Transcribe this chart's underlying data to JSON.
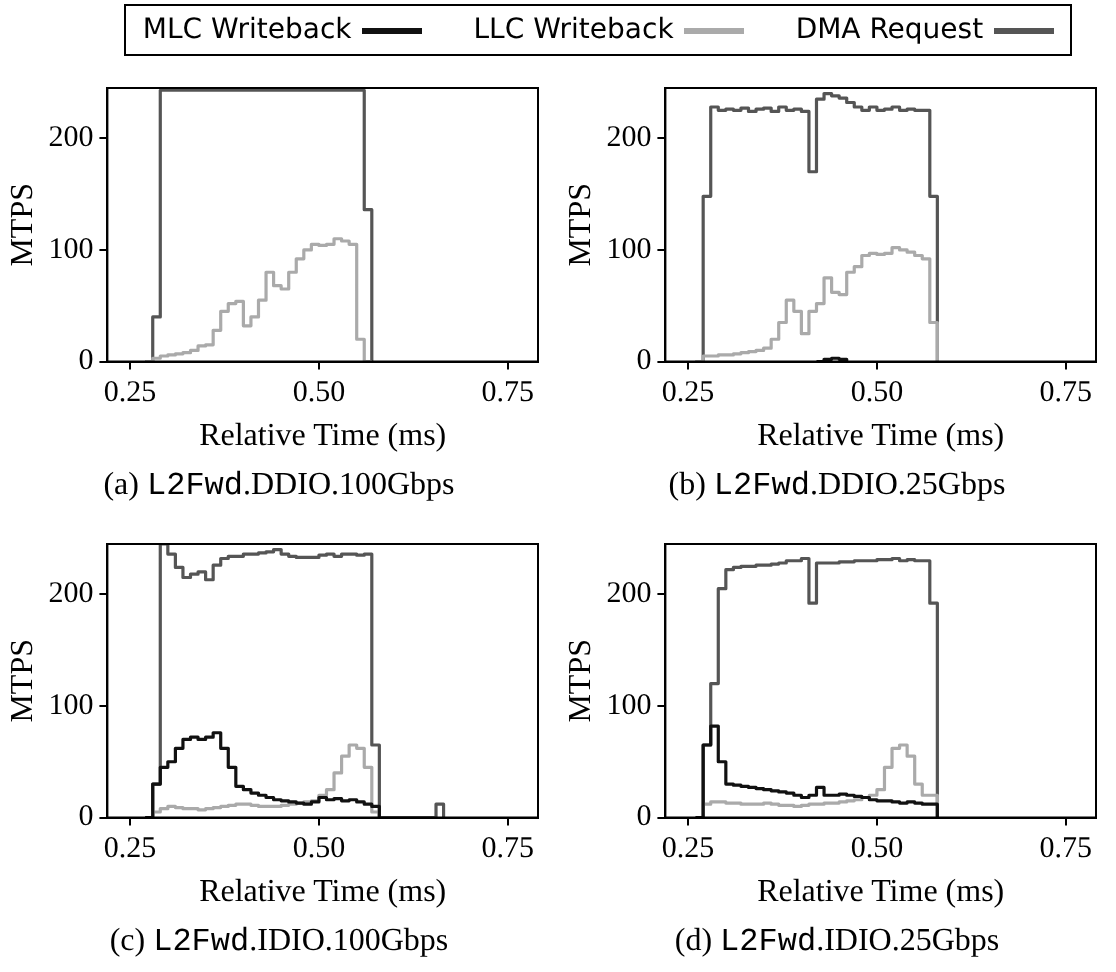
{
  "chart_data": [
    {
      "type": "step",
      "title": "(a) L2Fwd.DDIO.100Gbps",
      "xlabel": "Relative Time (ms)",
      "ylabel": "MTPS",
      "xlim": [
        0.22,
        0.79
      ],
      "xticks": [
        {
          "value": 0.25,
          "label": "0.25"
        },
        {
          "value": 0.5,
          "label": "0.50"
        },
        {
          "value": 0.75,
          "label": "0.75"
        }
      ],
      "ylim": [
        0,
        245
      ],
      "yticks": [
        0,
        100,
        200
      ],
      "grid": false,
      "x": [
        0.27,
        0.28,
        0.29,
        0.3,
        0.31,
        0.32,
        0.33,
        0.34,
        0.35,
        0.36,
        0.37,
        0.38,
        0.39,
        0.4,
        0.41,
        0.42,
        0.43,
        0.44,
        0.45,
        0.46,
        0.47,
        0.48,
        0.49,
        0.5,
        0.51,
        0.52,
        0.53,
        0.54,
        0.55,
        0.56,
        0.57
      ],
      "series": [
        {
          "color": "#aaaaaa",
          "values": [
            0,
            3,
            5,
            6,
            7,
            8,
            10,
            14,
            15,
            28,
            45,
            52,
            54,
            32,
            40,
            55,
            80,
            68,
            65,
            80,
            92,
            100,
            105,
            104,
            105,
            110,
            108,
            105,
            20,
            0,
            0
          ]
        },
        {
          "color": "#555555",
          "values": [
            0,
            40,
            243,
            243,
            243,
            243,
            243,
            243,
            243,
            243,
            243,
            243,
            243,
            243,
            243,
            243,
            243,
            243,
            243,
            243,
            243,
            243,
            243,
            243,
            243,
            243,
            243,
            243,
            243,
            136,
            0
          ]
        }
      ]
    },
    {
      "type": "step",
      "title": "(b) L2Fwd.DDIO.25Gbps",
      "xlabel": "Relative Time (ms)",
      "ylabel": "MTPS",
      "xlim": [
        0.22,
        0.79
      ],
      "xticks": [
        {
          "value": 0.25,
          "label": "0.25"
        },
        {
          "value": 0.5,
          "label": "0.50"
        },
        {
          "value": 0.75,
          "label": "0.75"
        }
      ],
      "ylim": [
        0,
        245
      ],
      "yticks": [
        0,
        100,
        200
      ],
      "grid": false,
      "x": [
        0.26,
        0.27,
        0.28,
        0.29,
        0.3,
        0.31,
        0.32,
        0.33,
        0.34,
        0.35,
        0.36,
        0.37,
        0.38,
        0.39,
        0.4,
        0.41,
        0.42,
        0.43,
        0.44,
        0.45,
        0.46,
        0.47,
        0.48,
        0.49,
        0.5,
        0.51,
        0.52,
        0.53,
        0.54,
        0.55,
        0.56,
        0.57,
        0.58
      ],
      "series": [
        {
          "color": "#111111",
          "x": [
            0.42,
            0.43,
            0.44,
            0.45,
            0.46
          ],
          "values": [
            0,
            2,
            3,
            2,
            0
          ]
        },
        {
          "color": "#aaaaaa",
          "values": [
            0,
            5,
            5,
            6,
            6,
            7,
            8,
            9,
            10,
            12,
            20,
            35,
            55,
            45,
            25,
            45,
            52,
            75,
            62,
            60,
            80,
            85,
            95,
            97,
            96,
            97,
            102,
            100,
            98,
            95,
            92,
            35,
            0
          ]
        },
        {
          "color": "#555555",
          "values": [
            0,
            148,
            228,
            225,
            226,
            225,
            227,
            224,
            226,
            227,
            224,
            228,
            225,
            226,
            224,
            170,
            235,
            240,
            238,
            236,
            232,
            228,
            225,
            228,
            225,
            226,
            228,
            225,
            226,
            225,
            225,
            148,
            0
          ]
        }
      ]
    },
    {
      "type": "step",
      "title": "(c) L2Fwd.IDIO.100Gbps",
      "xlabel": "Relative Time (ms)",
      "ylabel": "MTPS",
      "xlim": [
        0.22,
        0.79
      ],
      "xticks": [
        {
          "value": 0.25,
          "label": "0.25"
        },
        {
          "value": 0.5,
          "label": "0.50"
        },
        {
          "value": 0.75,
          "label": "0.75"
        }
      ],
      "ylim": [
        0,
        245
      ],
      "yticks": [
        0,
        100,
        200
      ],
      "grid": false,
      "legend": "top",
      "x": [
        0.27,
        0.28,
        0.29,
        0.3,
        0.31,
        0.32,
        0.33,
        0.34,
        0.35,
        0.36,
        0.37,
        0.38,
        0.39,
        0.4,
        0.41,
        0.42,
        0.43,
        0.44,
        0.45,
        0.46,
        0.47,
        0.48,
        0.49,
        0.5,
        0.51,
        0.52,
        0.53,
        0.54,
        0.55,
        0.56,
        0.57,
        0.58
      ],
      "series": [
        {
          "name": "MLC Writeback",
          "color": "#111111",
          "values": [
            0,
            30,
            45,
            50,
            62,
            70,
            72,
            70,
            72,
            76,
            62,
            45,
            28,
            25,
            22,
            20,
            18,
            16,
            15,
            14,
            13,
            12,
            14,
            18,
            16,
            17,
            15,
            16,
            14,
            12,
            10,
            0
          ]
        },
        {
          "name": "LLC Writeback",
          "color": "#aaaaaa",
          "values": [
            0,
            5,
            8,
            10,
            9,
            8,
            8,
            7,
            8,
            9,
            10,
            11,
            12,
            12,
            11,
            10,
            10,
            10,
            11,
            12,
            13,
            14,
            15,
            20,
            25,
            40,
            55,
            65,
            62,
            45,
            5,
            0
          ]
        },
        {
          "name": "DMA Request",
          "color": "#555555",
          "x": [
            0.27,
            0.28,
            0.29,
            0.3,
            0.31,
            0.32,
            0.33,
            0.34,
            0.35,
            0.36,
            0.37,
            0.38,
            0.39,
            0.4,
            0.41,
            0.42,
            0.43,
            0.44,
            0.45,
            0.46,
            0.47,
            0.48,
            0.49,
            0.5,
            0.51,
            0.52,
            0.53,
            0.54,
            0.55,
            0.56,
            0.57,
            0.58,
            0.655,
            0.665
          ],
          "values": [
            0,
            30,
            245,
            236,
            224,
            215,
            218,
            220,
            213,
            226,
            232,
            234,
            234,
            236,
            236,
            237,
            238,
            240,
            236,
            234,
            233,
            233,
            233,
            235,
            236,
            234,
            236,
            236,
            235,
            236,
            65,
            0,
            12,
            0
          ]
        }
      ]
    },
    {
      "type": "step",
      "title": "(d) L2Fwd.IDIO.25Gbps",
      "xlabel": "Relative Time (ms)",
      "ylabel": "MTPS",
      "xlim": [
        0.22,
        0.79
      ],
      "xticks": [
        {
          "value": 0.25,
          "label": "0.25"
        },
        {
          "value": 0.5,
          "label": "0.50"
        },
        {
          "value": 0.75,
          "label": "0.75"
        }
      ],
      "ylim": [
        0,
        245
      ],
      "yticks": [
        0,
        100,
        200
      ],
      "grid": false,
      "x": [
        0.26,
        0.27,
        0.28,
        0.29,
        0.3,
        0.31,
        0.32,
        0.33,
        0.34,
        0.35,
        0.36,
        0.37,
        0.38,
        0.39,
        0.4,
        0.41,
        0.42,
        0.43,
        0.44,
        0.45,
        0.46,
        0.47,
        0.48,
        0.49,
        0.5,
        0.51,
        0.52,
        0.53,
        0.54,
        0.55,
        0.56,
        0.57,
        0.58
      ],
      "series": [
        {
          "color": "#111111",
          "values": [
            0,
            65,
            82,
            50,
            30,
            29,
            28,
            27,
            26,
            25,
            24,
            23,
            22,
            20,
            18,
            20,
            27,
            20,
            20,
            21,
            20,
            19,
            18,
            16,
            15,
            15,
            14,
            13,
            14,
            13,
            12,
            12,
            0
          ]
        },
        {
          "color": "#aaaaaa",
          "values": [
            0,
            12,
            14,
            14,
            13,
            13,
            12,
            12,
            12,
            13,
            12,
            11,
            11,
            10,
            11,
            12,
            12,
            13,
            13,
            14,
            15,
            16,
            18,
            20,
            25,
            45,
            62,
            65,
            55,
            30,
            20,
            20,
            0
          ]
        },
        {
          "color": "#555555",
          "values": [
            0,
            65,
            120,
            205,
            222,
            224,
            225,
            225,
            226,
            226,
            227,
            228,
            230,
            230,
            232,
            192,
            228,
            228,
            228,
            229,
            229,
            230,
            230,
            230,
            231,
            231,
            232,
            230,
            231,
            230,
            230,
            192,
            0
          ]
        }
      ]
    }
  ]
}
